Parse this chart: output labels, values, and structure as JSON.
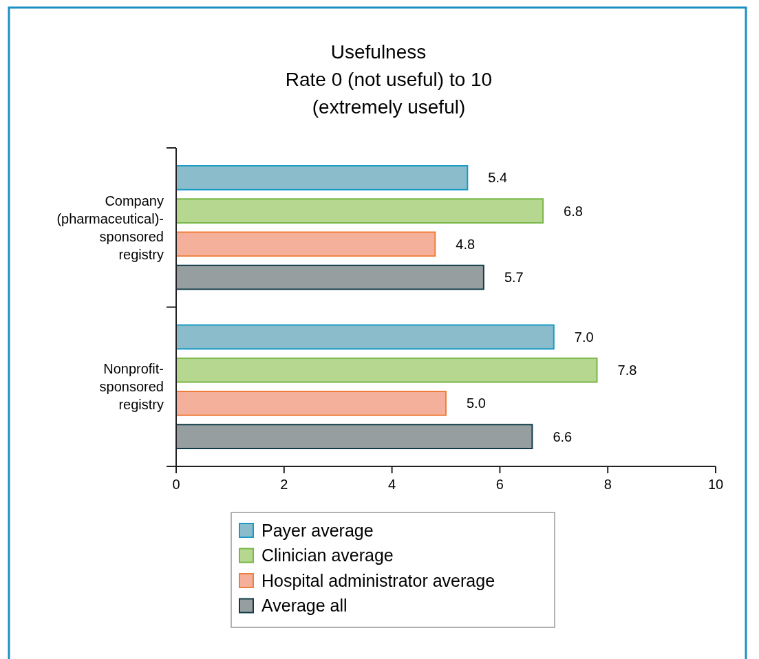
{
  "chart_data": {
    "type": "bar",
    "orientation": "horizontal",
    "title": "Usefulness",
    "subtitle": "Rate 0 (not useful) to 10\n(extremely useful)",
    "categories": [
      "Company (pharmaceutical)-sponsored registry",
      "Nonprofit-sponsored registry"
    ],
    "series": [
      {
        "name": "Payer average",
        "color": "#8bbccc",
        "values": [
          5.4,
          7
        ],
        "value_labels": [
          "5.4",
          "7.0"
        ]
      },
      {
        "name": "Clinician average",
        "color": "#b5d78f",
        "values": [
          6.8,
          7.8
        ],
        "value_labels": [
          "6.8",
          "7.8"
        ]
      },
      {
        "name": "Hospital administrator average",
        "color": "#f4b09a",
        "values": [
          4.8,
          5
        ],
        "value_labels": [
          "4.8",
          "5.0"
        ]
      },
      {
        "name": "Average all",
        "color": "#969ea0",
        "values": [
          5.7,
          6.6
        ],
        "value_labels": [
          "5.7",
          "6.6"
        ]
      }
    ],
    "xlim": [
      0,
      10
    ],
    "xticks": [
      0,
      2,
      4,
      6,
      8,
      10
    ],
    "legend": "bottom",
    "grid": false
  }
}
